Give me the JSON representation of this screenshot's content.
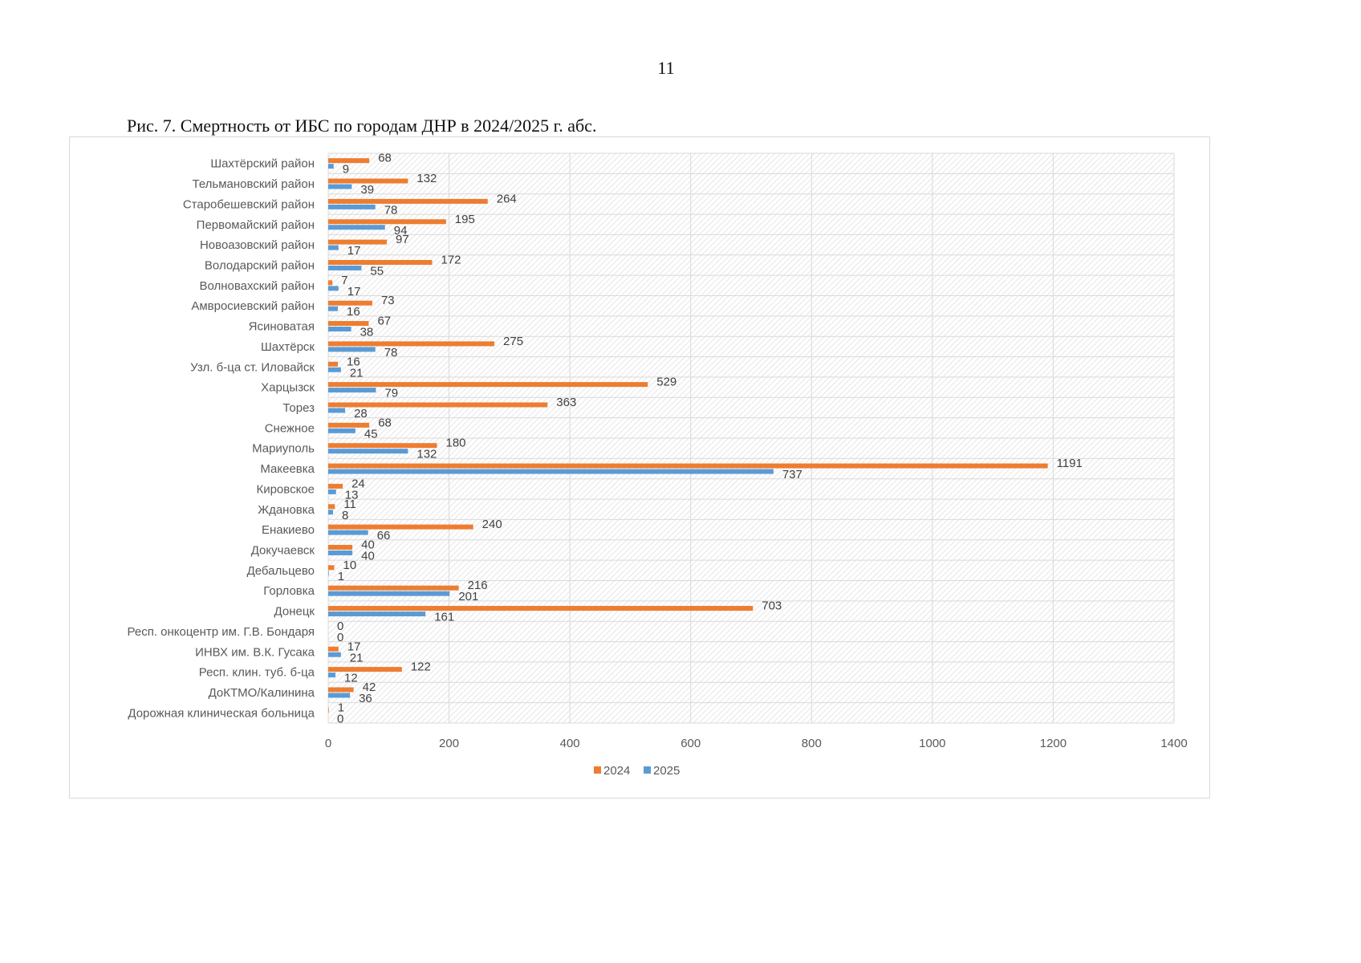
{
  "page": {
    "number": "11"
  },
  "figure": {
    "caption": "Рис. 7. Смертность от ИБС по городам ДНР в 2024/2025 г. абс."
  },
  "chart_data": {
    "type": "bar",
    "orientation": "horizontal",
    "categories": [
      "Шахтёрский район",
      "Тельмановский район",
      "Старобешевский район",
      "Первомайский район",
      "Новоазовский район",
      "Володарский район",
      "Волновахский район",
      "Амвросиевский район",
      "Ясиноватая",
      "Шахтёрск",
      "Узл. б-ца ст. Иловайск",
      "Харцызск",
      "Торез",
      "Снежное",
      "Мариуполь",
      "Макеевка",
      "Кировское",
      "Ждановка",
      "Енакиево",
      "Докучаевск",
      "Дебальцево",
      "Горловка",
      "Донецк",
      "Респ. онкоцентр  им. Г.В. Бондаря",
      "ИНВХ им. В.К. Гусака",
      "Респ. клин. туб. б-ца",
      "ДоКТМО/Калинина",
      "Дорожная клиническая больница"
    ],
    "series": [
      {
        "name": "2024",
        "color": "#ED7D31",
        "values": [
          68,
          132,
          264,
          195,
          97,
          172,
          7,
          73,
          67,
          275,
          16,
          529,
          363,
          68,
          180,
          1191,
          24,
          11,
          240,
          40,
          10,
          216,
          703,
          0,
          17,
          122,
          42,
          1
        ]
      },
      {
        "name": "2025",
        "color": "#5B9BD5",
        "values": [
          9,
          39,
          78,
          94,
          17,
          55,
          17,
          16,
          38,
          78,
          21,
          79,
          28,
          45,
          132,
          737,
          13,
          8,
          66,
          40,
          1,
          201,
          161,
          0,
          21,
          12,
          36,
          0
        ]
      }
    ],
    "x_ticks": [
      "0",
      "200",
      "400",
      "600",
      "800",
      "1000",
      "1200",
      "1400"
    ],
    "xlim": [
      0,
      1400
    ],
    "grid": true,
    "plot_fill": "hatched",
    "legend_position": "bottom"
  }
}
